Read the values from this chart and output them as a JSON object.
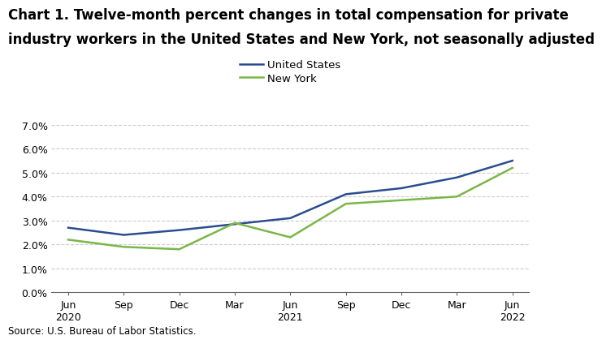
{
  "title_line1": "Chart 1. Twelve-month percent changes in total compensation for private",
  "title_line2": "industry workers in the United States and New York, not seasonally adjusted",
  "source": "Source: U.S. Bureau of Labor Statistics.",
  "x_labels": [
    "Jun\n2020",
    "Sep",
    "Dec",
    "Mar",
    "Jun\n2021",
    "Sep",
    "Dec",
    "Mar",
    "Jun\n2022"
  ],
  "us_values": [
    2.7,
    2.4,
    2.6,
    2.85,
    3.1,
    4.1,
    4.35,
    4.8,
    5.5
  ],
  "ny_values": [
    2.2,
    1.9,
    1.8,
    2.9,
    2.3,
    3.7,
    3.85,
    4.0,
    5.2
  ],
  "us_color": "#2a4d8f",
  "ny_color": "#7ab648",
  "ylim_min": 0.0,
  "ylim_max": 7.0,
  "ytick_vals": [
    0.0,
    1.0,
    2.0,
    3.0,
    4.0,
    5.0,
    6.0,
    7.0
  ],
  "ytick_labels": [
    "0.0%",
    "1.0%",
    "2.0%",
    "3.0%",
    "4.0%",
    "5.0%",
    "6.0%",
    "7.0%"
  ],
  "us_label": "United States",
  "ny_label": "New York",
  "line_width": 1.8,
  "grid_color": "#cccccc",
  "grid_style": "--",
  "background_color": "#ffffff",
  "title_fontsize": 12.0,
  "legend_fontsize": 9.5,
  "tick_fontsize": 9.0,
  "source_fontsize": 8.5
}
